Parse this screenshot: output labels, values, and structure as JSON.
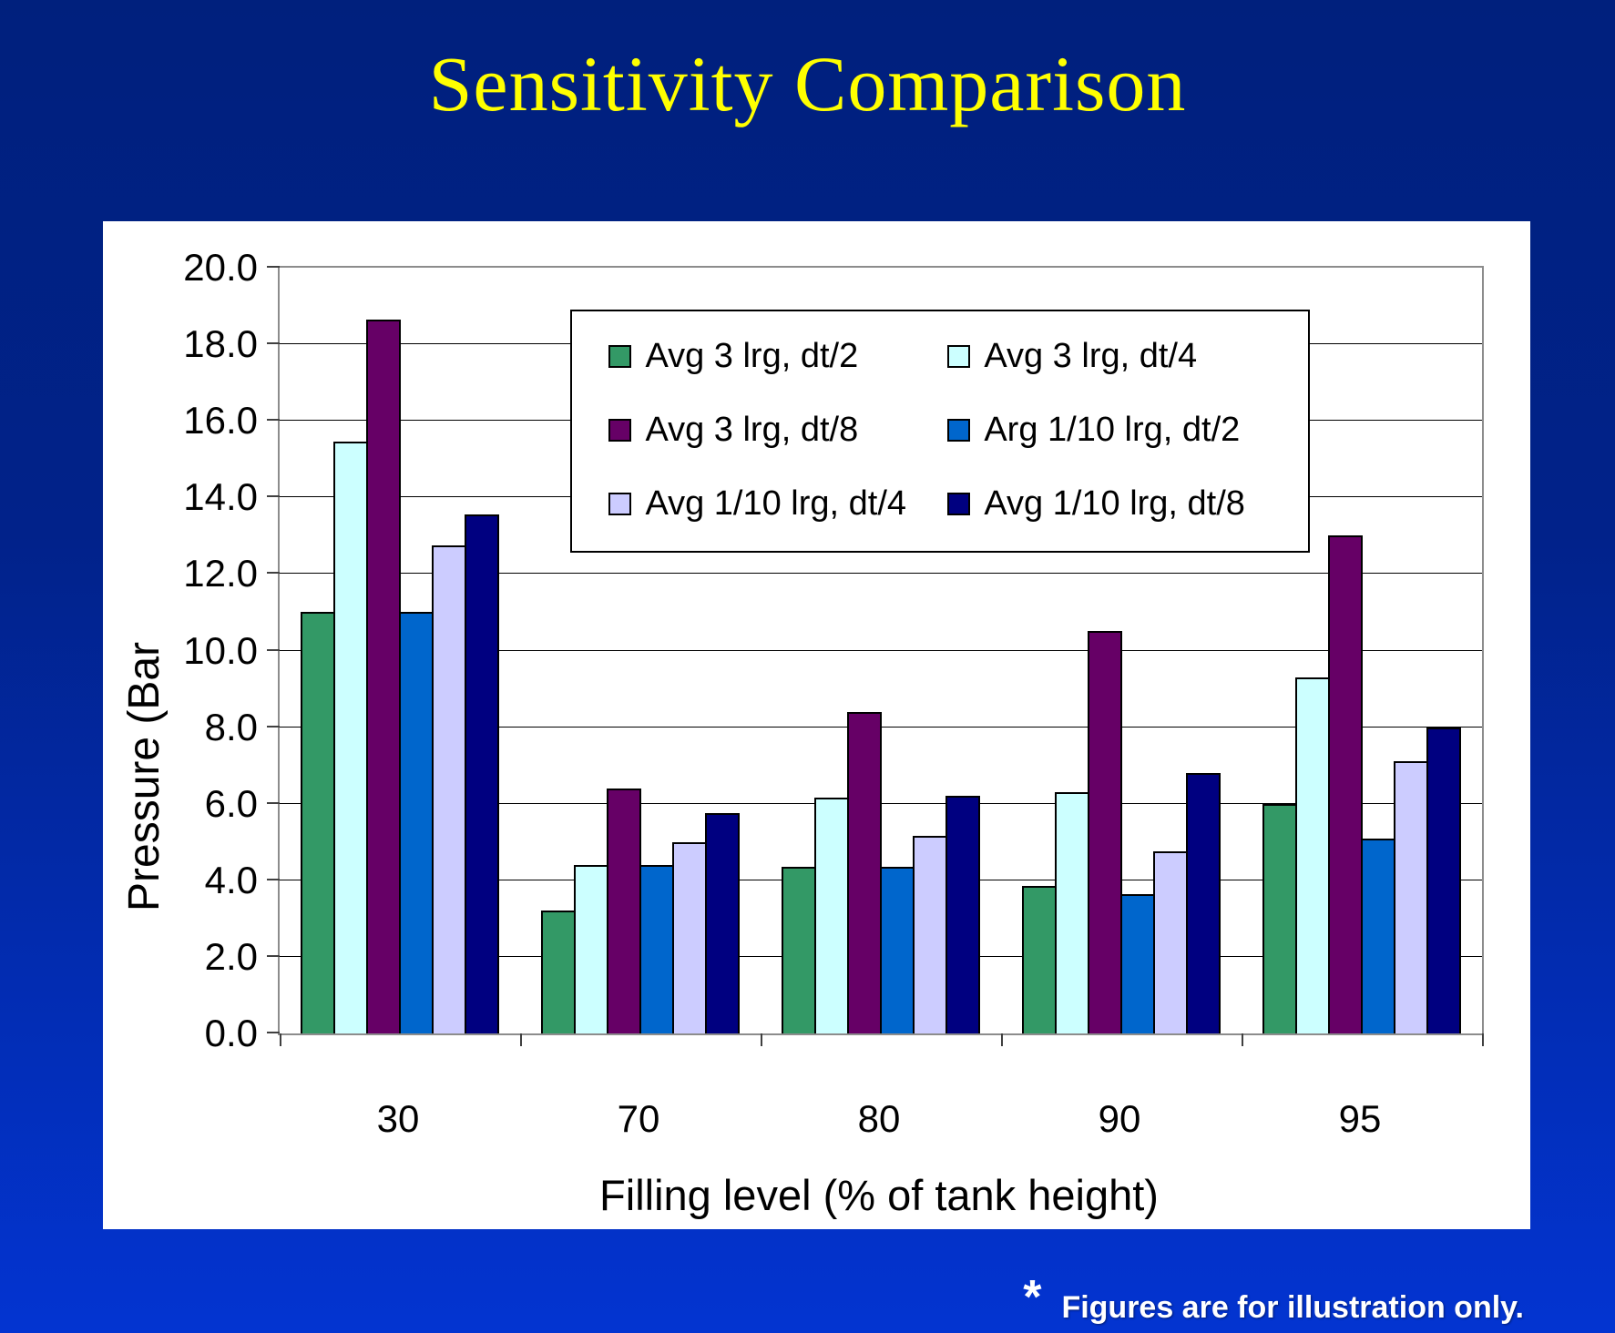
{
  "slide": {
    "title": "Sensitivity Comparison",
    "footnote_marker": "*",
    "footnote_text": "Figures are for illustration only."
  },
  "colors": {
    "background_top": "#00207D",
    "background_bottom": "#0334D1",
    "title_text": "#FFFF00",
    "panel_background": "#FFFFFF",
    "plot_border": "#8C8C8C",
    "gridline": "#000000",
    "bar_border": "#000000",
    "footnote_text": "#FFFFFF"
  },
  "chart_data": {
    "type": "bar",
    "title": "",
    "xlabel": "Filling level (% of tank height)",
    "ylabel": "Pressure (Bar",
    "categories": [
      "30",
      "70",
      "80",
      "90",
      "95"
    ],
    "series": [
      {
        "name": "Avg 3 lrg, dt/2",
        "color": "#339966",
        "values": [
          11.0,
          3.2,
          4.35,
          3.85,
          6.0
        ]
      },
      {
        "name": "Avg 3 lrg, dt/4",
        "color": "#CCFFFF",
        "values": [
          15.45,
          4.4,
          6.15,
          6.3,
          9.3
        ]
      },
      {
        "name": "Avg 3 lrg, dt/8",
        "color": "#660066",
        "values": [
          18.65,
          6.4,
          8.4,
          10.5,
          13.0
        ]
      },
      {
        "name": "Arg 1/10 lrg, dt/2",
        "color": "#0066CC",
        "values": [
          11.0,
          4.4,
          4.35,
          3.65,
          5.1
        ]
      },
      {
        "name": "Avg 1/10 lrg, dt/4",
        "color": "#CCCCFF",
        "values": [
          12.75,
          5.0,
          5.15,
          4.75,
          7.1
        ]
      },
      {
        "name": "Avg 1/10 lrg, dt/8",
        "color": "#000080",
        "values": [
          13.55,
          5.75,
          6.2,
          6.8,
          8.0
        ]
      }
    ],
    "ylim": [
      0,
      20
    ],
    "ytick_step": 2,
    "ytick_decimals": 1,
    "grid": true,
    "legend_position": "inside-top-center",
    "legend_columns": 2
  }
}
